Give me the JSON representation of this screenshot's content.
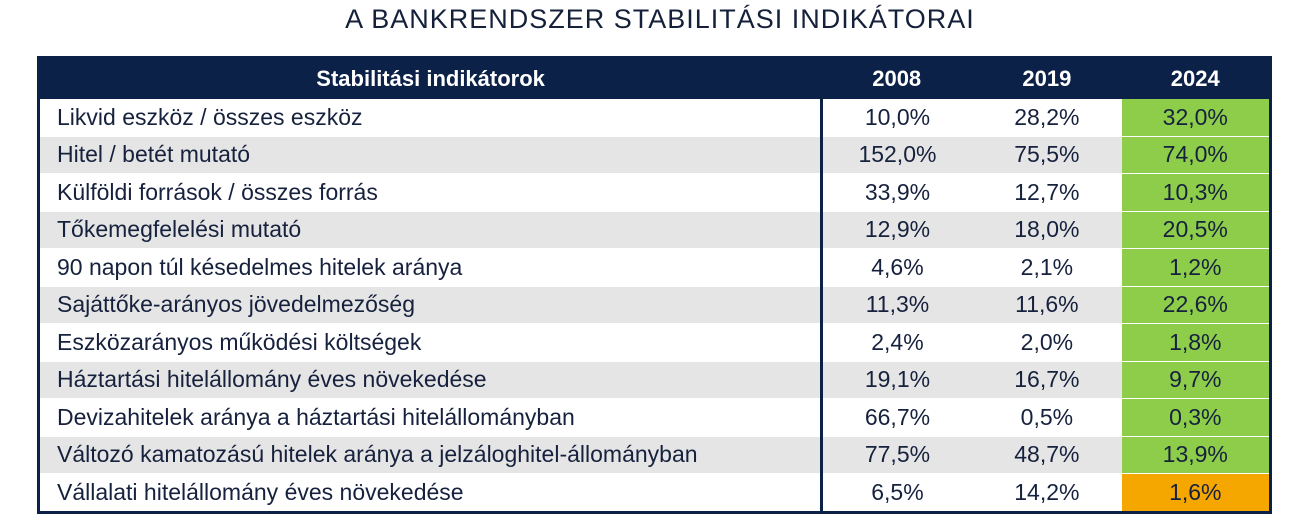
{
  "title": "A BANKRENDSZER STABILITÁSI INDIKÁTORAI",
  "colors": {
    "header": "#0c2148",
    "good": "#8dcd4a",
    "warning": "#f5a700",
    "stripe": "#e5e5e5"
  },
  "table": {
    "headers": [
      "Stabilitási indikátorok",
      "2008",
      "2019",
      "2024"
    ],
    "rows": [
      {
        "label": "Likvid eszköz / összes eszköz",
        "v2008": "10,0%",
        "v2019": "28,2%",
        "v2024": "32,0%",
        "status": "good"
      },
      {
        "label": "Hitel / betét mutató",
        "v2008": "152,0%",
        "v2019": "75,5%",
        "v2024": "74,0%",
        "status": "good"
      },
      {
        "label": "Külföldi források / összes forrás",
        "v2008": "33,9%",
        "v2019": "12,7%",
        "v2024": "10,3%",
        "status": "good"
      },
      {
        "label": "Tőkemegfelelési mutató",
        "v2008": "12,9%",
        "v2019": "18,0%",
        "v2024": "20,5%",
        "status": "good"
      },
      {
        "label": "90 napon túl késedelmes hitelek aránya",
        "v2008": "4,6%",
        "v2019": "2,1%",
        "v2024": "1,2%",
        "status": "good"
      },
      {
        "label": "Sajáttőke-arányos jövedelmezőség",
        "v2008": "11,3%",
        "v2019": "11,6%",
        "v2024": "22,6%",
        "status": "good"
      },
      {
        "label": "Eszközarányos működési költségek",
        "v2008": "2,4%",
        "v2019": "2,0%",
        "v2024": "1,8%",
        "status": "good"
      },
      {
        "label": "Háztartási hitelállomány éves növekedése",
        "v2008": "19,1%",
        "v2019": "16,7%",
        "v2024": "9,7%",
        "status": "good"
      },
      {
        "label": "Devizahitelek aránya a háztartási hitelállományban",
        "v2008": "66,7%",
        "v2019": "0,5%",
        "v2024": "0,3%",
        "status": "good"
      },
      {
        "label": "Változó kamatozású hitelek aránya a jelzáloghitel-állományban",
        "v2008": "77,5%",
        "v2019": "48,7%",
        "v2024": "13,9%",
        "status": "good"
      },
      {
        "label": "Vállalati hitelállomány éves növekedése",
        "v2008": "6,5%",
        "v2019": "14,2%",
        "v2024": "1,6%",
        "status": "warning"
      }
    ]
  }
}
